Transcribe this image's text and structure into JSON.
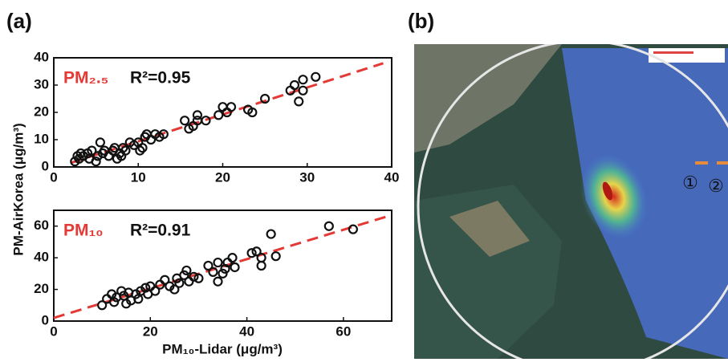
{
  "panels": [
    "(a)",
    "(b)"
  ],
  "map": {
    "markers": [
      "①",
      "②"
    ]
  },
  "chart_data": [
    {
      "type": "scatter",
      "ylabel": "PM-AirKorea (μg/m³)",
      "annotations": [
        {
          "text": "PM₂.₅",
          "color": "#e53935"
        },
        {
          "text": "R²=0.95",
          "color": "#111111"
        }
      ],
      "color": "#111111",
      "x": [
        2.5,
        2.8,
        3,
        3.2,
        3.5,
        4,
        4.2,
        4.5,
        5,
        5.2,
        5.5,
        5.8,
        6,
        6.5,
        7,
        7.2,
        7.5,
        7.8,
        8,
        8.2,
        8.5,
        9,
        9.5,
        10,
        10.2,
        10.5,
        10.8,
        11,
        11.5,
        12,
        12.5,
        13,
        15.5,
        16,
        16.5,
        17,
        17,
        18,
        19.5,
        20,
        20.5,
        21,
        23,
        23.5,
        25,
        28,
        28.5,
        29,
        29.5,
        29.5,
        31
      ],
      "values": [
        2,
        4,
        3,
        5,
        4,
        5,
        3,
        6,
        2,
        4,
        9,
        5,
        6,
        4,
        6,
        7,
        3,
        5,
        4,
        7,
        6,
        9,
        8,
        9,
        6,
        7,
        11,
        12,
        10,
        12,
        11,
        12,
        17,
        14,
        15,
        17,
        19,
        17,
        19,
        22,
        20,
        22,
        21,
        20,
        25,
        28,
        30,
        24,
        28,
        32,
        33
      ],
      "fit_line": {
        "x": [
          2,
          39
        ],
        "y": [
          1.5,
          38
        ],
        "color": "#e53935"
      },
      "xlim": [
        0,
        40
      ],
      "xticks": [
        0,
        10,
        20,
        30,
        40
      ],
      "ylim": [
        0,
        40
      ],
      "yticks": [
        0,
        10,
        20,
        30,
        40
      ]
    },
    {
      "type": "scatter",
      "xlabel": "PM₁₀-Lidar (μg/m³)",
      "annotations": [
        {
          "text": "PM₁₀",
          "color": "#e53935"
        },
        {
          "text": "R²=0.91",
          "color": "#111111"
        }
      ],
      "color": "#111111",
      "x": [
        10,
        11,
        12,
        12.5,
        13,
        14,
        14.5,
        15,
        15.5,
        16,
        17,
        17.5,
        18,
        19,
        19.5,
        20,
        21,
        22,
        23,
        24,
        25,
        25.5,
        26,
        27,
        27.5,
        28,
        29,
        30,
        32,
        33,
        34,
        34,
        35,
        35.5,
        36,
        37,
        37.5,
        41,
        42,
        43,
        43,
        45,
        46,
        57,
        62
      ],
      "values": [
        10,
        14,
        17,
        12,
        15,
        19,
        16,
        11,
        18,
        13,
        17,
        14,
        19,
        21,
        17,
        22,
        19,
        23,
        26,
        22,
        20,
        27,
        24,
        29,
        32,
        25,
        28,
        27,
        35,
        31,
        37,
        25,
        30,
        33,
        37,
        40,
        34,
        43,
        44,
        35,
        40,
        55,
        41,
        60,
        58
      ],
      "fit_line": {
        "x": [
          0,
          70
        ],
        "y": [
          2,
          67
        ],
        "color": "#e53935"
      },
      "xlim": [
        0,
        70
      ],
      "xticks": [
        0,
        20,
        40,
        60
      ],
      "ylim": [
        0,
        70
      ],
      "yticks": [
        0,
        20,
        40,
        60
      ]
    }
  ]
}
